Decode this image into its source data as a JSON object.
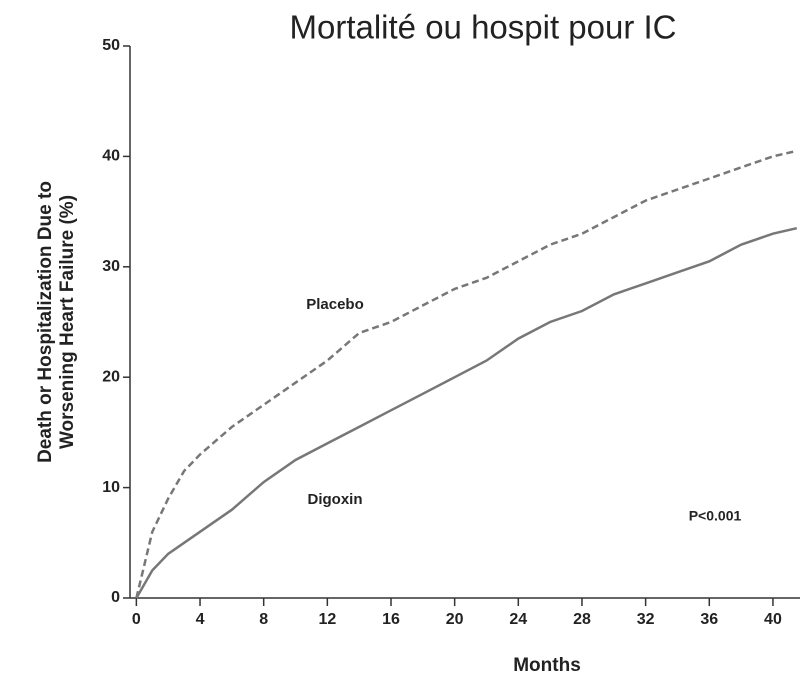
{
  "chart_data": {
    "type": "line",
    "title": "Mortalité ou hospit pour IC",
    "y_label": [
      "Death or Hospitalization Due to",
      "Worsening Heart Failure (%)"
    ],
    "x_label": "Months",
    "annotation": "P<0.001",
    "x": [
      0,
      1,
      2,
      3,
      4,
      6,
      8,
      10,
      12,
      14,
      16,
      18,
      20,
      22,
      24,
      26,
      28,
      30,
      32,
      34,
      36,
      38,
      40,
      41.5
    ],
    "series": [
      {
        "name": "Placebo",
        "color": "#777777",
        "style": "dashed",
        "values": [
          0,
          6,
          9,
          11.5,
          13,
          15.5,
          17.5,
          19.5,
          21.5,
          24,
          25,
          26.5,
          28,
          29,
          30.5,
          32,
          33,
          34.5,
          36,
          37,
          38,
          39,
          40,
          40.5
        ]
      },
      {
        "name": "Digoxin",
        "color": "#777777",
        "style": "solid",
        "values": [
          0,
          2.5,
          4,
          5,
          6,
          8,
          10.5,
          12.5,
          14,
          15.5,
          17,
          18.5,
          20,
          21.5,
          23.5,
          25,
          26,
          27.5,
          28.5,
          29.5,
          30.5,
          32,
          33,
          33.5
        ]
      }
    ],
    "xlim": [
      -0.4,
      41.7
    ],
    "xticks": [
      0,
      4,
      8,
      12,
      16,
      20,
      24,
      28,
      32,
      36,
      40
    ],
    "ylim": [
      0,
      50
    ],
    "yticks": [
      0,
      10,
      20,
      30,
      40,
      50
    ]
  }
}
